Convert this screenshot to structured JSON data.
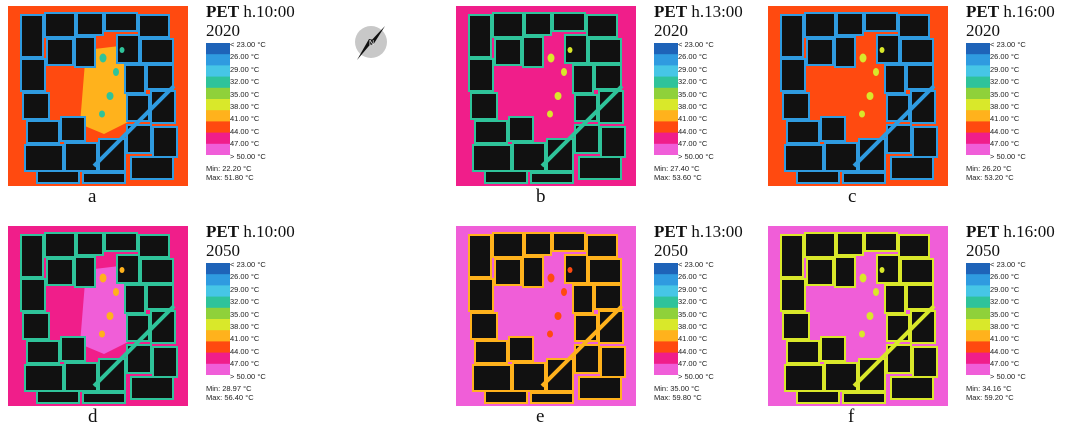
{
  "chart_data": [
    {
      "type": "heatmap",
      "panel": "a",
      "title_bold": "PET",
      "title_time": "h.10:00",
      "year": "2020",
      "min_label": "Min: 22.20 °C",
      "max_label": "Max: 51.80 °C",
      "min": 22.2,
      "max": 51.8
    },
    {
      "type": "heatmap",
      "panel": "b",
      "title_bold": "PET",
      "title_time": "h.13:00",
      "year": "2020",
      "min_label": "Min: 27.40 °C",
      "max_label": "Max: 53.60 °C",
      "min": 27.4,
      "max": 53.6
    },
    {
      "type": "heatmap",
      "panel": "c",
      "title_bold": "PET",
      "title_time": "h.16:00",
      "year": "2020",
      "min_label": "Min: 26.20 °C",
      "max_label": "Max: 53.20 °C",
      "min": 26.2,
      "max": 53.2
    },
    {
      "type": "heatmap",
      "panel": "d",
      "title_bold": "PET",
      "title_time": "h.10:00",
      "year": "2050",
      "min_label": "Min: 28.97 °C",
      "max_label": "Max: 56.40 °C",
      "min": 28.97,
      "max": 56.4
    },
    {
      "type": "heatmap",
      "panel": "e",
      "title_bold": "PET",
      "title_time": "h.13:00",
      "year": "2050",
      "min_label": "Min: 35.00 °C",
      "max_label": "Max: 59.80 °C",
      "min": 35.0,
      "max": 59.8
    },
    {
      "type": "heatmap",
      "panel": "f",
      "title_bold": "PET",
      "title_time": "h.16:00",
      "year": "2050",
      "min_label": "Min: 34.16 °C",
      "max_label": "Max: 59.20 °C",
      "min": 34.16,
      "max": 59.2
    }
  ],
  "legend": {
    "labels": [
      "< 23.00 °C",
      "26.00 °C",
      "29.00 °C",
      "32.00 °C",
      "35.00 °C",
      "38.00 °C",
      "41.00 °C",
      "44.00 °C",
      "47.00 °C",
      "> 50.00 °C"
    ],
    "colors": [
      "#1e63b8",
      "#2f9be0",
      "#46c6e6",
      "#2fc39a",
      "#8fd13a",
      "#d9e82a",
      "#ffb21c",
      "#ff4a10",
      "#f01e8a",
      "#f05ed8"
    ]
  },
  "palette": {
    "building": "#111111",
    "perimeter": "#2a7a58"
  },
  "north_icon": "compass-north-arrow-icon"
}
